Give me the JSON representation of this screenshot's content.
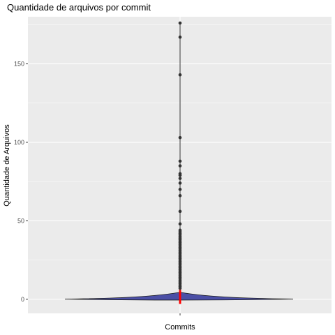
{
  "chart_data": {
    "type": "violin",
    "title": "Quantidade de arquivos por commit",
    "xlabel": "Commits",
    "ylabel": "Quantidade de Arquivos",
    "x_ticks": [
      ""
    ],
    "y_ticks": [
      0,
      50,
      100,
      150
    ],
    "ylim": [
      -9,
      180
    ],
    "grid": true,
    "box": {
      "min": 0,
      "q1": 1,
      "median": 2,
      "q3": 3,
      "whisker_high": 6
    },
    "outliers": [
      176,
      167,
      143,
      103,
      88,
      85,
      80,
      79,
      77,
      74,
      70,
      66,
      56,
      48,
      44,
      43,
      42,
      41,
      40,
      39,
      38,
      37,
      36,
      35,
      34,
      33,
      32,
      31,
      30,
      29,
      28,
      27,
      26,
      25,
      24,
      23,
      22,
      21,
      20,
      19,
      18,
      17,
      16,
      15,
      14,
      13,
      12,
      11,
      10,
      9,
      8,
      7
    ],
    "colors": {
      "violin_fill": "#4b4fa6",
      "violin_stroke": "#1a1a1a",
      "mean_marker": "#ff0000",
      "panel": "#ebebeb",
      "grid": "#ffffff"
    }
  }
}
